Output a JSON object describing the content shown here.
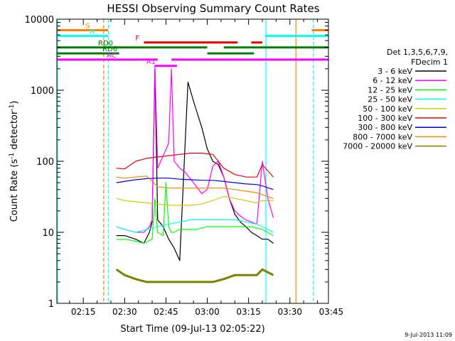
{
  "chart_data": {
    "type": "line",
    "title": "HESSI Observing Summary Count Rates",
    "xlabel": "Start Time (09-Jul-13 02:05:22)",
    "ylabel": "Count Rate (s⁻¹ detector⁻¹)",
    "ylabel_main": "Count Rate (s",
    "ylabel_mid": " detector",
    "ylabel_end": ")",
    "ylabel_sup": "-1",
    "xlim_minutes": [
      5.4,
      104.0
    ],
    "ylim": [
      1,
      10000
    ],
    "yscale": "log",
    "x_ticks": [
      {
        "label": "02:15",
        "minute": 15
      },
      {
        "label": "02:30",
        "minute": 30
      },
      {
        "label": "02:45",
        "minute": 45
      },
      {
        "label": "03:00",
        "minute": 60
      },
      {
        "label": "03:15",
        "minute": 75
      },
      {
        "label": "03:30",
        "minute": 90
      },
      {
        "label": "03:45",
        "minute": 105
      }
    ],
    "y_ticks": [
      {
        "label": "1",
        "value": 1
      },
      {
        "label": "10",
        "value": 10
      },
      {
        "label": "100",
        "value": 100
      },
      {
        "label": "1000",
        "value": 1000
      },
      {
        "label": "10000",
        "value": 10000
      }
    ],
    "legend": {
      "placement": "right",
      "header": [
        "Det 1,3,5,6,7,9,",
        "FDecim 1"
      ],
      "entries": [
        {
          "label": "3 - 6 keV",
          "color": "#000000"
        },
        {
          "label": "6 - 12 keV",
          "color": "#ff00ff"
        },
        {
          "label": "12 - 25 keV",
          "color": "#00ff00"
        },
        {
          "label": "25 - 50 keV",
          "color": "#00ffff"
        },
        {
          "label": "50 - 100 keV",
          "color": "#cccc00"
        },
        {
          "label": "100 - 300 keV",
          "color": "#ee0000"
        },
        {
          "label": "300 - 800 keV",
          "color": "#0000ee"
        },
        {
          "label": "800 - 7000 keV",
          "color": "#ff8000"
        },
        {
          "label": "7000 - 20000 keV",
          "color": "#808000"
        }
      ]
    },
    "series": [
      {
        "name": "3 - 6 keV",
        "color": "#000000",
        "x": [
          27,
          30,
          34,
          37,
          39,
          40,
          41,
          42,
          44,
          46,
          48,
          50,
          53,
          55,
          58,
          60,
          62,
          64,
          66,
          68,
          70,
          72,
          74,
          76,
          78,
          80,
          82,
          84
        ],
        "y": [
          9,
          9,
          8,
          7,
          10,
          14,
          2000,
          15,
          12,
          8,
          6,
          4,
          1300,
          700,
          300,
          150,
          100,
          90,
          60,
          30,
          18,
          14,
          12,
          10,
          9,
          8,
          8,
          7
        ]
      },
      {
        "name": "6 - 12 keV",
        "color": "#ff00ff",
        "x": [
          27,
          30,
          34,
          37,
          39,
          40,
          41,
          42,
          44,
          46,
          47,
          48,
          49,
          50,
          52,
          55,
          58,
          60,
          62,
          64,
          66,
          68,
          70,
          72,
          74,
          76,
          78,
          80,
          82,
          84
        ],
        "y": [
          12,
          11,
          10,
          10,
          12,
          15,
          2200,
          80,
          120,
          180,
          2000,
          100,
          90,
          80,
          70,
          50,
          35,
          40,
          85,
          100,
          60,
          30,
          20,
          17,
          15,
          14,
          13,
          100,
          30,
          16
        ]
      },
      {
        "name": "12 - 25 keV",
        "color": "#00ff00",
        "x": [
          27,
          30,
          34,
          37,
          40,
          41,
          42,
          44,
          45,
          46,
          47,
          48,
          50,
          53,
          56,
          60,
          64,
          68,
          72,
          76,
          80,
          84
        ],
        "y": [
          8,
          8,
          7.5,
          7,
          8,
          30,
          10,
          9,
          50,
          12,
          10,
          10,
          11,
          11,
          11,
          12,
          12,
          12,
          12,
          12,
          11,
          9
        ]
      },
      {
        "name": "25 - 50 keV",
        "color": "#00ffff",
        "x": [
          27,
          30,
          34,
          38,
          42,
          46,
          50,
          54,
          58,
          62,
          66,
          70,
          74,
          78,
          80,
          84
        ],
        "y": [
          12,
          11,
          10,
          11,
          12,
          13,
          14,
          15,
          15,
          15,
          15,
          15,
          14,
          13,
          12,
          10
        ]
      },
      {
        "name": "50 - 100 keV",
        "color": "#cccc00",
        "x": [
          27,
          30,
          34,
          38,
          42,
          46,
          50,
          54,
          58,
          62,
          66,
          70,
          74,
          78,
          80,
          84
        ],
        "y": [
          30,
          28,
          27,
          26,
          25,
          24,
          24,
          24,
          25,
          28,
          32,
          30,
          28,
          26,
          28,
          28
        ]
      },
      {
        "name": "100 - 300 keV",
        "color": "#ee0000",
        "x": [
          27,
          30,
          34,
          38,
          42,
          46,
          50,
          54,
          58,
          62,
          64,
          66,
          70,
          74,
          78,
          80,
          84
        ],
        "y": [
          80,
          78,
          100,
          110,
          115,
          120,
          125,
          130,
          130,
          125,
          100,
          80,
          65,
          60,
          60,
          90,
          60
        ]
      },
      {
        "name": "300 - 800 keV",
        "color": "#0000ee",
        "x": [
          27,
          30,
          34,
          38,
          42,
          46,
          50,
          54,
          58,
          62,
          66,
          70,
          74,
          78,
          80,
          84
        ],
        "y": [
          50,
          52,
          55,
          57,
          58,
          58,
          56,
          55,
          54,
          54,
          52,
          50,
          48,
          47,
          45,
          40
        ]
      },
      {
        "name": "800 - 7000 keV",
        "color": "#ff8000",
        "x": [
          27,
          30,
          34,
          38,
          42,
          46,
          50,
          54,
          58,
          62,
          66,
          70,
          74,
          78,
          80,
          84
        ],
        "y": [
          60,
          58,
          60,
          62,
          44,
          42,
          42,
          42,
          42,
          42,
          42,
          40,
          38,
          36,
          34,
          30
        ]
      },
      {
        "name": "7000 - 20000 keV",
        "color": "#808000",
        "x": [
          27,
          30,
          34,
          38,
          42,
          46,
          50,
          54,
          58,
          62,
          66,
          70,
          74,
          78,
          80,
          84
        ],
        "y": [
          3,
          2.5,
          2.2,
          2,
          2,
          2,
          2,
          2,
          2,
          2,
          2.2,
          2.5,
          2.5,
          2.5,
          3,
          2.5
        ]
      }
    ],
    "state_bars": [
      {
        "label": "S",
        "color": "#ff8000",
        "level": 7000,
        "segments": [
          [
            5.4,
            24
          ],
          [
            98,
            104
          ]
        ]
      },
      {
        "label": "N",
        "color": "#00ffff",
        "level": 5800,
        "segments": [
          [
            5.4,
            24
          ],
          [
            81,
            104
          ]
        ]
      },
      {
        "label": "F",
        "color": "#ee0000",
        "level": 4700,
        "segments": [
          [
            37,
            71
          ],
          [
            76,
            80
          ]
        ]
      },
      {
        "label": "RD0",
        "color": "#008000",
        "level": 4000,
        "segments": [
          [
            5.4,
            60
          ],
          [
            66,
            104
          ]
        ]
      },
      {
        "label": "RD6",
        "color": "#008000",
        "level": 3300,
        "segments": [
          [
            5.4,
            28
          ],
          [
            60,
            77
          ]
        ]
      },
      {
        "label": "AC",
        "color": "#ff00ff",
        "level": 2700,
        "segments": [
          [
            5.4,
            42
          ],
          [
            47,
            104
          ]
        ]
      },
      {
        "label": "A1",
        "color": "#ff00ff",
        "level": 2200,
        "segments": [
          [
            41,
            49
          ]
        ]
      }
    ],
    "vertical_lines": [
      {
        "minute": 5.6,
        "color": "#00ffff",
        "style": "solid"
      },
      {
        "minute": 22.4,
        "color": "#ff8000",
        "style": "dashed"
      },
      {
        "minute": 24.1,
        "color": "#00ffff",
        "style": "dashed"
      },
      {
        "minute": 81.3,
        "color": "#00ffff",
        "style": "solid"
      },
      {
        "minute": 92.2,
        "color": "#ff8000",
        "style": "solid"
      },
      {
        "minute": 98.5,
        "color": "#00ffff",
        "style": "dashed"
      }
    ],
    "annotation": "9-Jul-2013 11:09"
  }
}
